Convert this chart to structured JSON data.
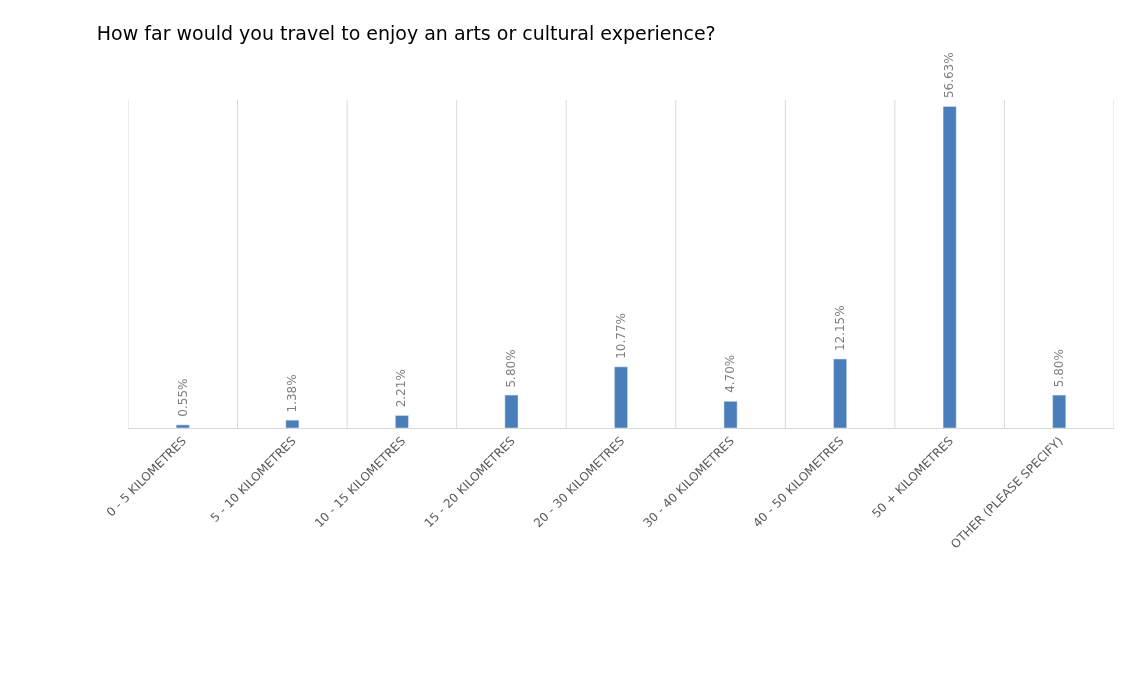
{
  "chart_data": {
    "type": "bar",
    "title": "How far would you travel to enjoy an arts or cultural experience?",
    "categories": [
      "0 - 5 KILOMETRES",
      "5 - 10 KILOMETRES",
      "10 - 15 KILOMETRES",
      "15 - 20 KILOMETRES",
      "20 - 30 KILOMETRES",
      "30 - 40 KILOMETRES",
      "40 - 50 KILOMETRES",
      "50 + KILOMETRES",
      "OTHER (PLEASE SPECIFY)"
    ],
    "values": [
      0.55,
      1.38,
      2.21,
      5.8,
      10.77,
      4.7,
      12.15,
      56.63,
      5.8
    ],
    "value_labels": [
      "0.55%",
      "1.38%",
      "2.21%",
      "5.80%",
      "10.77%",
      "4.70%",
      "12.15%",
      "56.63%",
      "5.80%"
    ],
    "color": "#4a7ebb",
    "grid": "x",
    "legend": false
  }
}
